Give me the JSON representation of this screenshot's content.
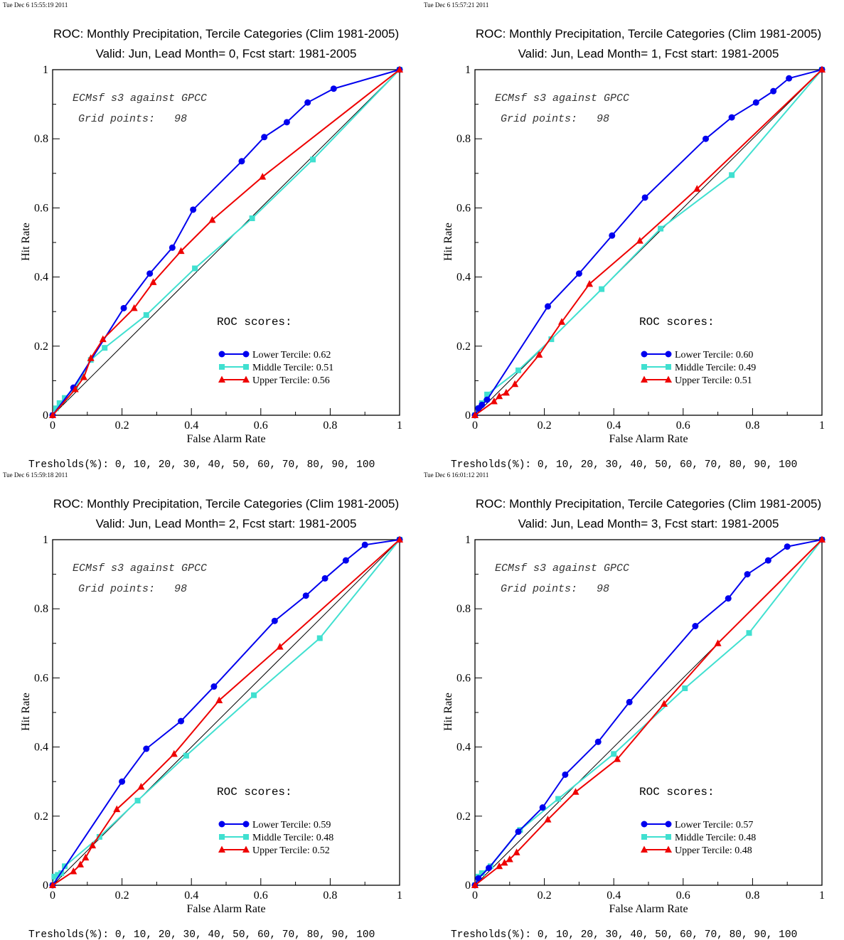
{
  "colors": {
    "lower": "#0000ee",
    "middle": "#40e0d0",
    "upper": "#ee0000",
    "diagonal": "#000000"
  },
  "chart_data": [
    {
      "type": "line",
      "timestamp": "Tue Dec  6 15:55:19 2011",
      "title": "ROC: Monthly Precipitation, Tercile Categories (Clim 1981-2005)",
      "subtitle": "Valid: Jun, Lead Month= 0, Fcst start: 1981-2005",
      "xlabel": "False Alarm Rate",
      "ylabel": "Hit Rate",
      "xlim": [
        0,
        1
      ],
      "ylim": [
        0,
        1
      ],
      "xticks": [
        "0",
        "0.2",
        "0.4",
        "0.6",
        "0.8",
        "1"
      ],
      "yticks": [
        "0",
        "0.2",
        "0.4",
        "0.6",
        "0.8",
        "1"
      ],
      "annotation1": "ECMsf s3 against GPCC",
      "annotation2": "Grid points:   98",
      "scores_label": "ROC scores:",
      "footer": "Tresholds(%): 0, 10, 20, 30, 40, 50, 60, 70, 80, 90, 100",
      "series": [
        {
          "name": "Lower Tercile: 0.62",
          "marker": "circle",
          "color": "#0000ee",
          "x": [
            0,
            0.06,
            0.205,
            0.28,
            0.345,
            0.405,
            0.545,
            0.61,
            0.675,
            0.735,
            0.81,
            1
          ],
          "y": [
            0,
            0.08,
            0.31,
            0.41,
            0.485,
            0.595,
            0.735,
            0.805,
            0.848,
            0.905,
            0.945,
            1
          ]
        },
        {
          "name": "Middle Tercile: 0.51",
          "marker": "square",
          "color": "#40e0d0",
          "x": [
            0,
            0.01,
            0.02,
            0.035,
            0.065,
            0.11,
            0.15,
            0.27,
            0.41,
            0.575,
            0.75,
            1
          ],
          "y": [
            0,
            0.02,
            0.035,
            0.05,
            0.08,
            0.16,
            0.195,
            0.29,
            0.425,
            0.57,
            0.74,
            1
          ]
        },
        {
          "name": "Upper Tercile: 0.56",
          "marker": "triangle",
          "color": "#ee0000",
          "x": [
            0,
            0.065,
            0.09,
            0.11,
            0.145,
            0.235,
            0.29,
            0.37,
            0.46,
            0.605,
            1
          ],
          "y": [
            0,
            0.075,
            0.11,
            0.165,
            0.22,
            0.31,
            0.385,
            0.475,
            0.565,
            0.69,
            1
          ]
        }
      ]
    },
    {
      "type": "line",
      "timestamp": "Tue Dec  6 15:57:21 2011",
      "title": "ROC: Monthly Precipitation, Tercile Categories (Clim 1981-2005)",
      "subtitle": "Valid: Jun, Lead Month= 1, Fcst start: 1981-2005",
      "xlabel": "False Alarm Rate",
      "ylabel": "Hit Rate",
      "xlim": [
        0,
        1
      ],
      "ylim": [
        0,
        1
      ],
      "xticks": [
        "0",
        "0.2",
        "0.4",
        "0.6",
        "0.8",
        "1"
      ],
      "yticks": [
        "0",
        "0.2",
        "0.4",
        "0.6",
        "0.8",
        "1"
      ],
      "annotation1": "ECMsf s3 against GPCC",
      "annotation2": "Grid points:   98",
      "scores_label": "ROC scores:",
      "footer": "Tresholds(%): 0, 10, 20, 30, 40, 50, 60, 70, 80, 90, 100",
      "series": [
        {
          "name": "Lower Tercile: 0.60",
          "marker": "circle",
          "color": "#0000ee",
          "x": [
            0,
            0.01,
            0.02,
            0.035,
            0.21,
            0.3,
            0.395,
            0.49,
            0.665,
            0.74,
            0.81,
            0.86,
            0.905,
            1
          ],
          "y": [
            0,
            0.02,
            0.03,
            0.045,
            0.315,
            0.41,
            0.52,
            0.63,
            0.8,
            0.862,
            0.905,
            0.938,
            0.975,
            1
          ]
        },
        {
          "name": "Middle Tercile: 0.49",
          "marker": "square",
          "color": "#40e0d0",
          "x": [
            0,
            0.01,
            0.02,
            0.035,
            0.125,
            0.22,
            0.365,
            0.535,
            0.74,
            1
          ],
          "y": [
            0,
            0.02,
            0.035,
            0.06,
            0.13,
            0.22,
            0.365,
            0.54,
            0.695,
            1
          ]
        },
        {
          "name": "Upper Tercile: 0.51",
          "marker": "triangle",
          "color": "#ee0000",
          "x": [
            0,
            0.055,
            0.07,
            0.09,
            0.115,
            0.185,
            0.25,
            0.33,
            0.475,
            0.64,
            1
          ],
          "y": [
            0,
            0.04,
            0.055,
            0.065,
            0.09,
            0.175,
            0.27,
            0.38,
            0.505,
            0.655,
            1
          ]
        }
      ]
    },
    {
      "type": "line",
      "timestamp": "Tue Dec  6 15:59:18 2011",
      "title": "ROC: Monthly Precipitation, Tercile Categories (Clim 1981-2005)",
      "subtitle": "Valid: Jun, Lead Month= 2, Fcst start: 1981-2005",
      "xlabel": "False Alarm Rate",
      "ylabel": "Hit Rate",
      "xlim": [
        0,
        1
      ],
      "ylim": [
        0,
        1
      ],
      "xticks": [
        "0",
        "0.2",
        "0.4",
        "0.6",
        "0.8",
        "1"
      ],
      "yticks": [
        "0",
        "0.2",
        "0.4",
        "0.6",
        "0.8",
        "1"
      ],
      "annotation1": "ECMsf s3 against GPCC",
      "annotation2": "Grid points:   98",
      "scores_label": "ROC scores:",
      "footer": "Tresholds(%): 0, 10, 20, 30, 40, 50, 60, 70, 80, 90, 100",
      "series": [
        {
          "name": "Lower Tercile: 0.59",
          "marker": "circle",
          "color": "#0000ee",
          "x": [
            0,
            0.2,
            0.27,
            0.37,
            0.465,
            0.64,
            0.73,
            0.785,
            0.845,
            0.9,
            1
          ],
          "y": [
            0,
            0.3,
            0.395,
            0.475,
            0.575,
            0.765,
            0.838,
            0.888,
            0.94,
            0.985,
            1
          ]
        },
        {
          "name": "Middle Tercile: 0.48",
          "marker": "square",
          "color": "#40e0d0",
          "x": [
            0,
            0.005,
            0.015,
            0.025,
            0.035,
            0.135,
            0.245,
            0.385,
            0.58,
            0.77,
            1
          ],
          "y": [
            0,
            0.025,
            0.03,
            0.035,
            0.055,
            0.14,
            0.245,
            0.375,
            0.55,
            0.715,
            1
          ]
        },
        {
          "name": "Upper Tercile: 0.52",
          "marker": "triangle",
          "color": "#ee0000",
          "x": [
            0,
            0.06,
            0.08,
            0.095,
            0.115,
            0.185,
            0.255,
            0.35,
            0.48,
            0.655,
            1
          ],
          "y": [
            0,
            0.04,
            0.06,
            0.08,
            0.115,
            0.22,
            0.285,
            0.38,
            0.535,
            0.69,
            1
          ]
        }
      ]
    },
    {
      "type": "line",
      "timestamp": "Tue Dec  6 16:01:12 2011",
      "title": "ROC: Monthly Precipitation, Tercile Categories (Clim 1981-2005)",
      "subtitle": "Valid: Jun, Lead Month= 3, Fcst start: 1981-2005",
      "xlabel": "False Alarm Rate",
      "ylabel": "Hit Rate",
      "xlim": [
        0,
        1
      ],
      "ylim": [
        0,
        1
      ],
      "xticks": [
        "0",
        "0.2",
        "0.4",
        "0.6",
        "0.8",
        "1"
      ],
      "yticks": [
        "0",
        "0.2",
        "0.4",
        "0.6",
        "0.8",
        "1"
      ],
      "annotation1": "ECMsf s3 against GPCC",
      "annotation2": "Grid points:   98",
      "scores_label": "ROC scores:",
      "footer": "Tresholds(%): 0, 10, 20, 30, 40, 50, 60, 70, 80, 90, 100",
      "series": [
        {
          "name": "Lower Tercile: 0.57",
          "marker": "circle",
          "color": "#0000ee",
          "x": [
            0,
            0.01,
            0.04,
            0.125,
            0.195,
            0.26,
            0.355,
            0.445,
            0.635,
            0.73,
            0.785,
            0.845,
            0.9,
            1
          ],
          "y": [
            0,
            0.02,
            0.05,
            0.155,
            0.225,
            0.32,
            0.415,
            0.53,
            0.75,
            0.83,
            0.9,
            0.94,
            0.98,
            1
          ]
        },
        {
          "name": "Middle Tercile: 0.48",
          "marker": "square",
          "color": "#40e0d0",
          "x": [
            0,
            0.01,
            0.02,
            0.045,
            0.13,
            0.24,
            0.4,
            0.605,
            0.79,
            1
          ],
          "y": [
            0,
            0.025,
            0.035,
            0.055,
            0.16,
            0.25,
            0.38,
            0.57,
            0.73,
            1
          ]
        },
        {
          "name": "Upper Tercile: 0.48",
          "marker": "triangle",
          "color": "#ee0000",
          "x": [
            0,
            0.07,
            0.085,
            0.1,
            0.12,
            0.21,
            0.29,
            0.41,
            0.545,
            0.7,
            1
          ],
          "y": [
            0,
            0.055,
            0.065,
            0.075,
            0.095,
            0.19,
            0.27,
            0.365,
            0.525,
            0.7,
            1
          ]
        }
      ]
    }
  ]
}
